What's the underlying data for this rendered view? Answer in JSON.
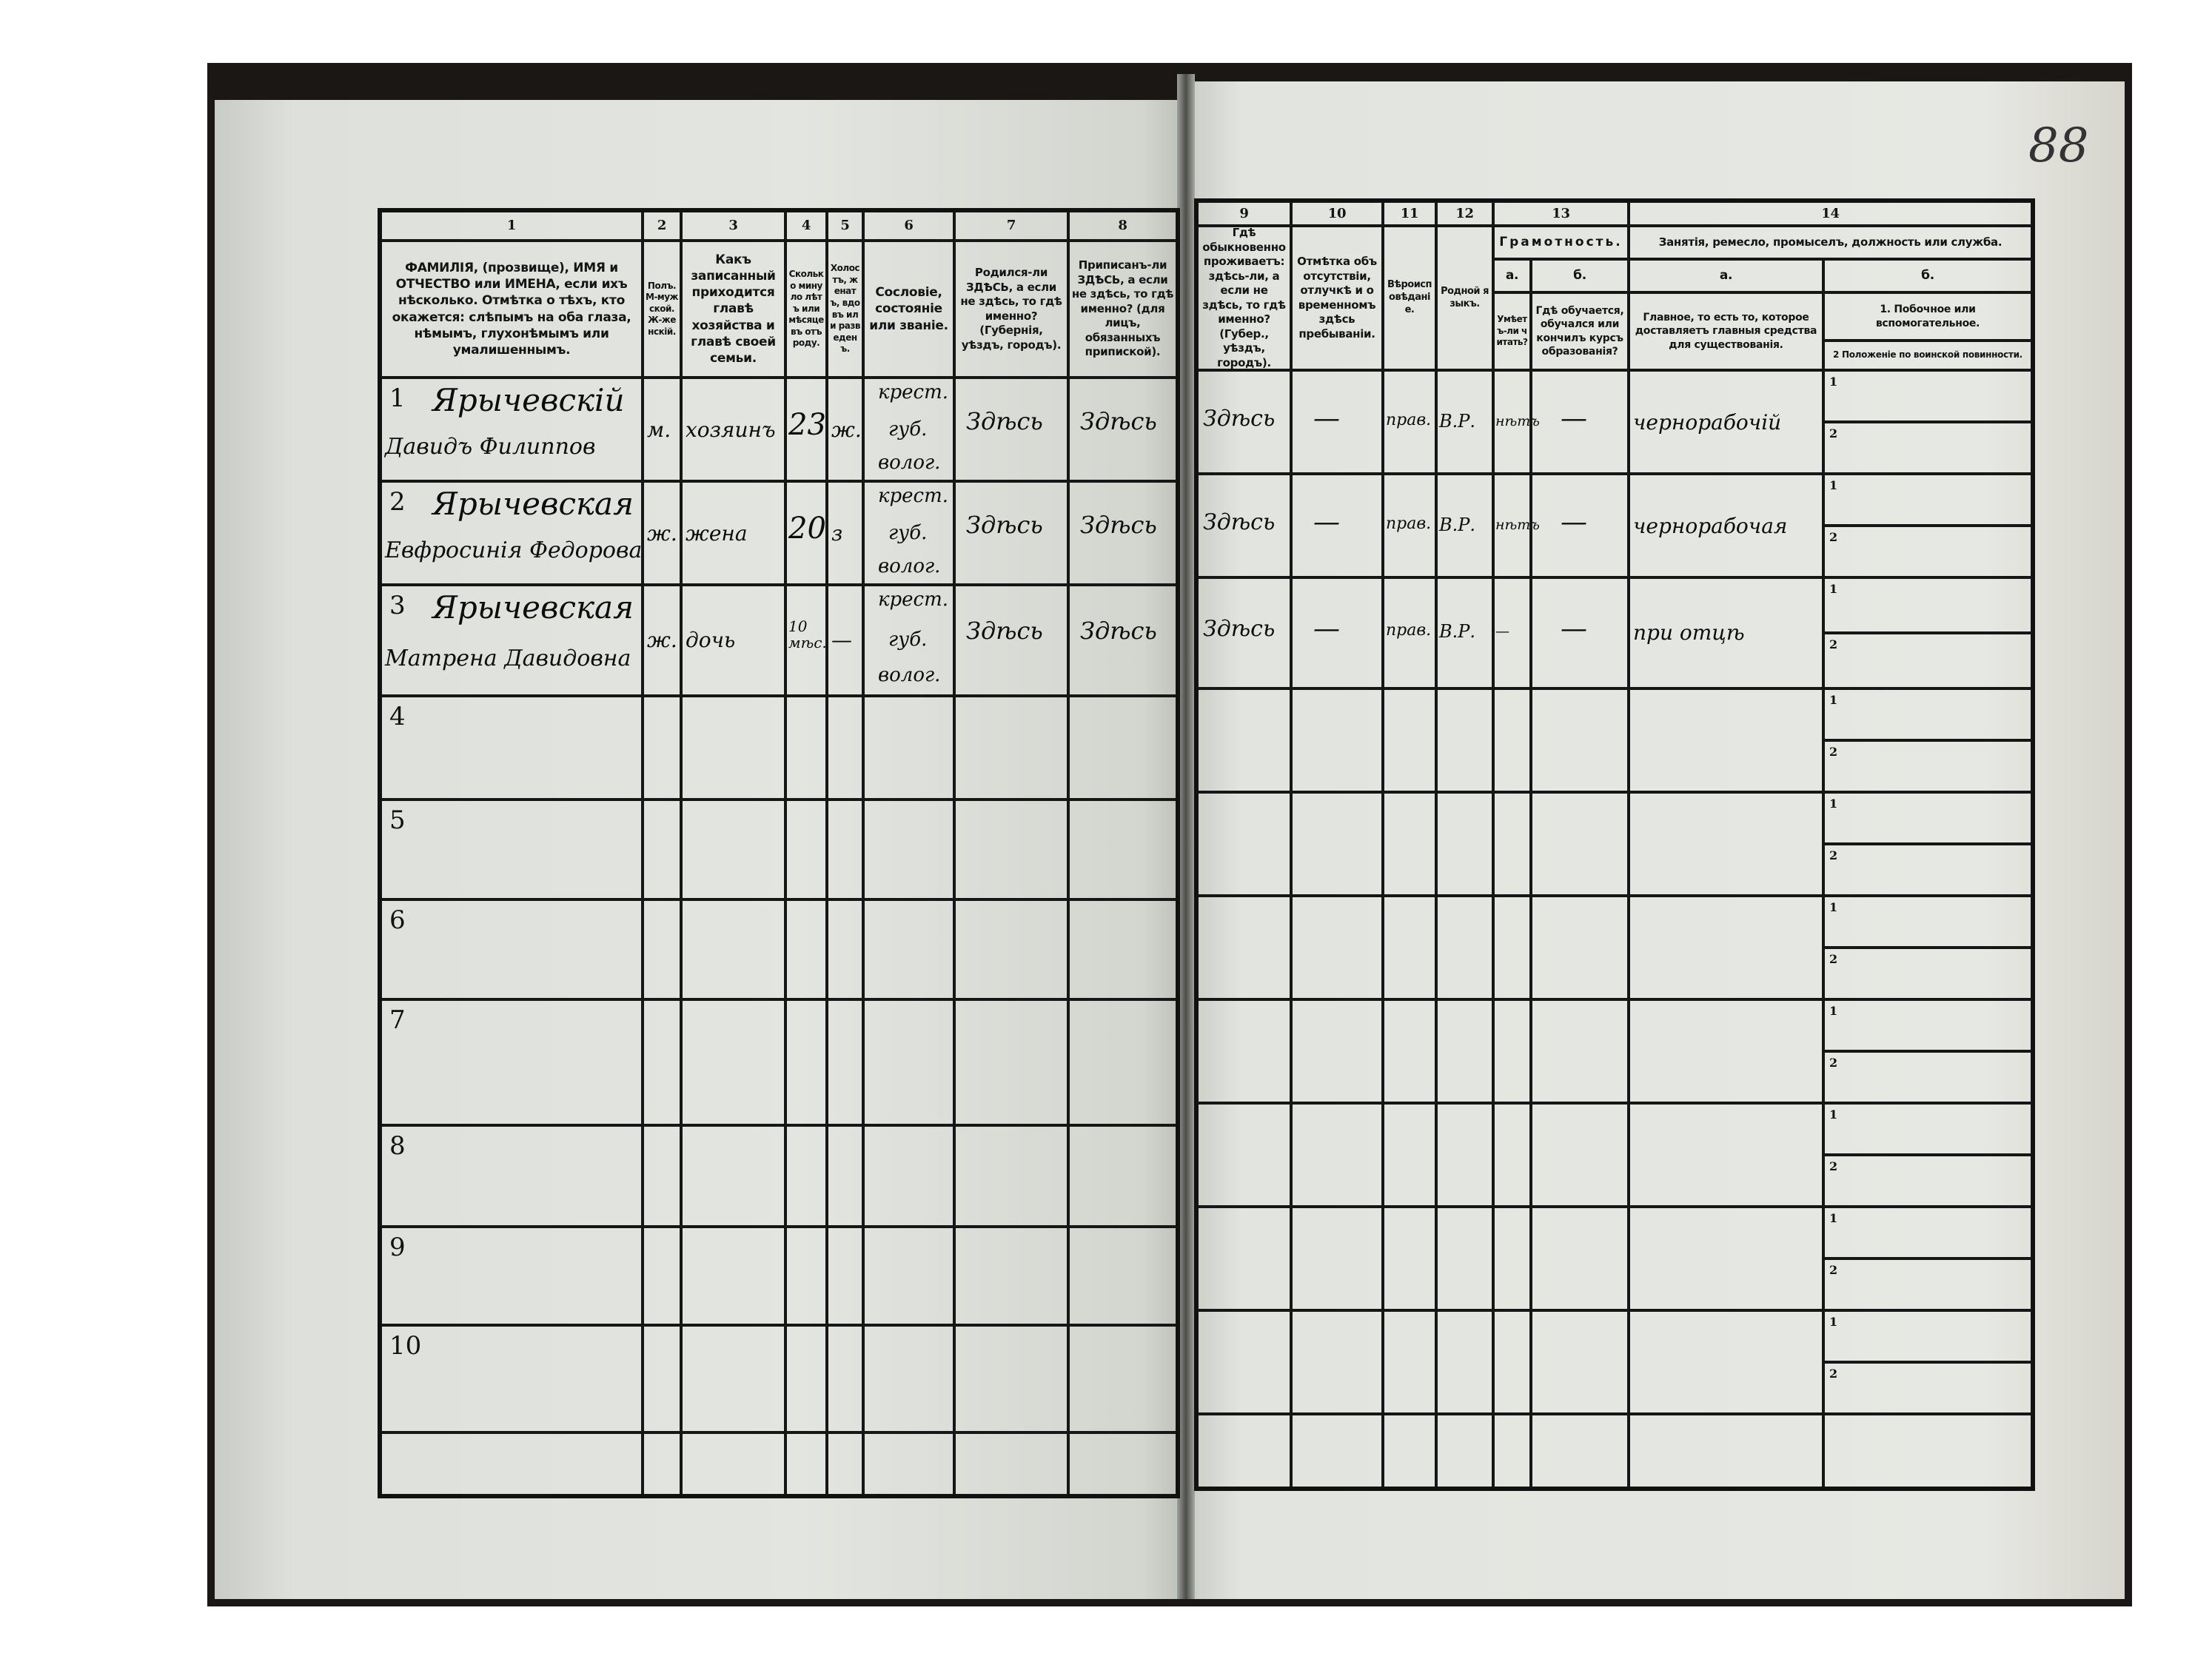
{
  "page_number": "88",
  "left_headers": [
    {
      "num": "1",
      "text": "ФАМИЛІЯ, (прозвище), ИМЯ и ОТЧЕСТВО или ИМЕНА, если ихъ нѣсколько. Отмѣтка о тѣхъ, кто окажется: слѣпымъ на оба глаза, нѣмымъ, глухонѣмымъ или умалишеннымъ."
    },
    {
      "num": "2",
      "text": "Полъ. М-мужской. Ж-женскій."
    },
    {
      "num": "3",
      "text": "Какъ записанный приходится главѣ хозяйства и главѣ своей семьи."
    },
    {
      "num": "4",
      "text": "Сколько минуло лѣтъ или мѣсяцевъ отъ роду."
    },
    {
      "num": "5",
      "text": "Холостъ, женатъ, вдовъ или разведенъ."
    },
    {
      "num": "6",
      "text": "Сословіе, состояніе или званіе."
    },
    {
      "num": "7",
      "text": "Родился-ли ЗДѢСЬ, а если не здѣсь, то гдѣ именно? (Губернія, уѣздъ, городъ)."
    },
    {
      "num": "8",
      "text": "Приписанъ-ли ЗДѢСЬ, а если не здѣсь, то гдѣ именно? (для лицъ, обязанныхъ припиской)."
    }
  ],
  "right_headers": [
    {
      "num": "9",
      "text": "Гдѣ обыкновенно проживаетъ: здѣсь-ли, а если не здѣсь, то гдѣ именно? (Губер., уѣздъ, городъ)."
    },
    {
      "num": "10",
      "text": "Отмѣтка объ отсутствіи, отлучкѣ и о временномъ здѣсь пребываніи."
    },
    {
      "num": "11",
      "text": "Вѣроисповѣданіе."
    },
    {
      "num": "12",
      "text": "Родной языкъ."
    },
    {
      "num": "13",
      "text": "Грамотность.",
      "sub": [
        {
          "label": "а.",
          "text": "Умѣетъ-ли читать?"
        },
        {
          "label": "б.",
          "text": "Гдѣ обучается, обучался или кончилъ курсъ образованія?"
        }
      ]
    },
    {
      "num": "14",
      "text": "Занятія, ремесло, промыселъ, должность или служба.",
      "sub": [
        {
          "label": "а.",
          "text": "Главное, то есть то, которое доставляетъ главныя средства для существованія."
        },
        {
          "label": "б.",
          "text": "1. Побочное или вспомогательное.",
          "text2": "2 Положеніе по воинской повинности."
        }
      ]
    }
  ],
  "row_numbers": [
    "1",
    "2",
    "3",
    "4",
    "5",
    "6",
    "7",
    "8",
    "9",
    "10"
  ],
  "sub_labels": [
    "1",
    "2"
  ],
  "rows": [
    {
      "surname": "Ярычевскій",
      "given": "Давидъ Филиппов",
      "sex": "м.",
      "relation": "хозяинъ",
      "age": "23",
      "marital": "ж.",
      "estate": "крест. губ. волог.",
      "born": "Здѣсь",
      "registered": "Здѣсь",
      "residence": "Здѣсь",
      "absence": "—",
      "religion": "прав.",
      "language": "В.Р.",
      "can_read": "нѣтъ",
      "education": "—",
      "occupation_main": "чернорабочій"
    },
    {
      "surname": "Ярычевская",
      "given": "Евфросинія Федорова",
      "sex": "ж.",
      "relation": "жена",
      "age": "20",
      "marital": "з",
      "estate": "крест. губ. волог.",
      "born": "Здѣсь",
      "registered": "Здѣсь",
      "residence": "Здѣсь",
      "absence": "—",
      "religion": "прав.",
      "language": "В.Р.",
      "can_read": "нѣтъ",
      "education": "—",
      "occupation_main": "чернорабочая"
    },
    {
      "surname": "Ярычевская",
      "given": "Матрена Давидовна",
      "sex": "ж.",
      "relation": "дочь",
      "age": "10 мѣс.",
      "marital": "—",
      "estate": "крест. губ. волог.",
      "born": "Здѣсь",
      "registered": "Здѣсь",
      "residence": "Здѣсь",
      "absence": "—",
      "religion": "прав.",
      "language": "В.Р.",
      "can_read": "—",
      "education": "—",
      "occupation_main": "при отцѣ"
    }
  ]
}
